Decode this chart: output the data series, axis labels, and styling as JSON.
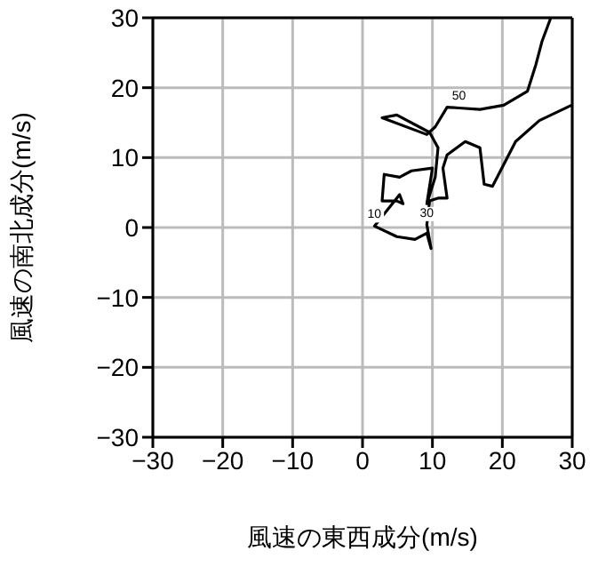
{
  "chart_data": {
    "type": "line",
    "xlabel": "風速の東西成分(m/s)",
    "ylabel": "風速の南北成分(m/s)",
    "x": [
      29.9,
      25.3,
      21.9,
      18.6,
      17.4,
      16.8,
      14.7,
      12.1,
      11.5,
      12.1,
      10.8,
      9.6,
      9.2,
      9.8,
      9.2,
      7.5,
      4.9,
      1.7,
      5.3,
      5.8,
      4.9,
      2.8,
      3.1,
      5.3,
      7.0,
      10.0,
      9.8,
      9.2,
      10.4,
      10.8,
      9.6,
      4.9,
      2.8,
      9.2,
      10.4,
      12.1,
      13.8,
      16.8,
      20.2,
      23.6,
      24.8,
      25.7,
      26.9
    ],
    "series": [
      {
        "color": "#000000",
        "values": [
          17.5,
          15.3,
          12.3,
          5.9,
          6.2,
          11.4,
          12.3,
          10.4,
          8.5,
          4.2,
          4.2,
          3.8,
          0.4,
          -3.0,
          -0.8,
          -1.7,
          -1.3,
          0.2,
          4.7,
          3.4,
          3.8,
          3.8,
          7.6,
          7.2,
          8.1,
          8.5,
          7.2,
          3.4,
          7.2,
          11.4,
          13.6,
          16.1,
          15.7,
          13.3,
          14.4,
          17.2,
          17.1,
          16.9,
          17.5,
          19.5,
          23.3,
          26.7,
          29.9
        ]
      }
    ],
    "annotations": [
      {
        "text": "10",
        "x": 1.7,
        "y": 0.2
      },
      {
        "text": "30",
        "x": 9.2,
        "y": 0.4
      },
      {
        "text": "50",
        "x": 13.8,
        "y": 17.1
      }
    ],
    "xlim": [
      -30,
      30
    ],
    "ylim": [
      -30,
      30
    ],
    "xticks": [
      {
        "value": -30,
        "label": "−30"
      },
      {
        "value": -20,
        "label": "−20"
      },
      {
        "value": -10,
        "label": "−10"
      },
      0,
      10,
      20,
      30
    ],
    "yticks": [
      {
        "value": -30,
        "label": "−30"
      },
      {
        "value": -20,
        "label": "−20"
      },
      {
        "value": -10,
        "label": "−10"
      },
      0,
      10,
      20,
      30
    ],
    "grid": true,
    "marker": "none",
    "line_style": "solid",
    "legend": false
  }
}
